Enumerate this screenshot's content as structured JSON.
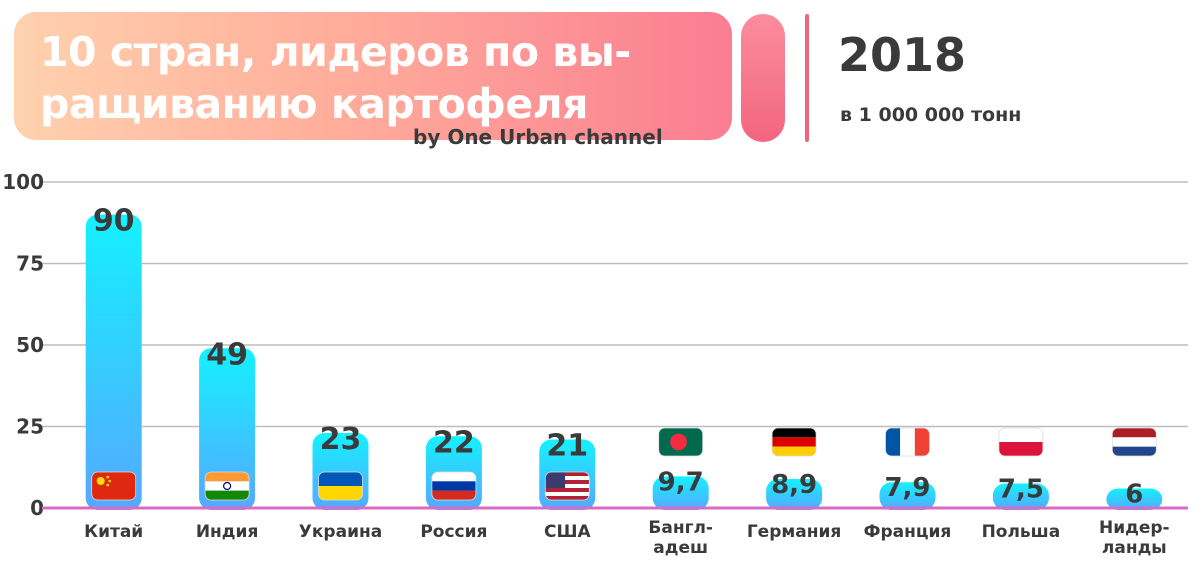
{
  "header": {
    "title": "10 стран, лидеров по вы-\nращиванию картофеля",
    "subtitle": "by One Urban channel",
    "year": "2018",
    "unit": "в 1 000 000 тонн"
  },
  "colors": {
    "bar_top": "#14f1ff",
    "bar_bottom": "#56a8ff",
    "baseline": "#d86bc6",
    "grid": "#bdbdbd",
    "text": "#3a3a3a"
  },
  "chart_data": {
    "type": "bar",
    "title": "10 стран, лидеров по вы-\nращиванию картофеля",
    "ylim": [
      0,
      100
    ],
    "yticks": [
      0,
      25,
      50,
      75,
      100
    ],
    "grid": true,
    "categories": [
      "Китай",
      "Индия",
      "Украина",
      "Россия",
      "США",
      "Бангл-\nадеш",
      "Германия",
      "Франция",
      "Польша",
      "Нидер-\nланды"
    ],
    "values": [
      90,
      49,
      23,
      22,
      21,
      9.7,
      8.9,
      7.9,
      7.5,
      6
    ],
    "value_labels": [
      "90",
      "49",
      "23",
      "22",
      "21",
      "9,7",
      "8,9",
      "7,9",
      "7,5",
      "6"
    ],
    "flags": [
      "china-flag-icon",
      "india-flag-icon",
      "ukraine-flag-icon",
      "russia-flag-icon",
      "usa-flag-icon",
      "bangladesh-flag-icon",
      "germany-flag-icon",
      "france-flag-icon",
      "poland-flag-icon",
      "netherlands-flag-icon"
    ]
  }
}
